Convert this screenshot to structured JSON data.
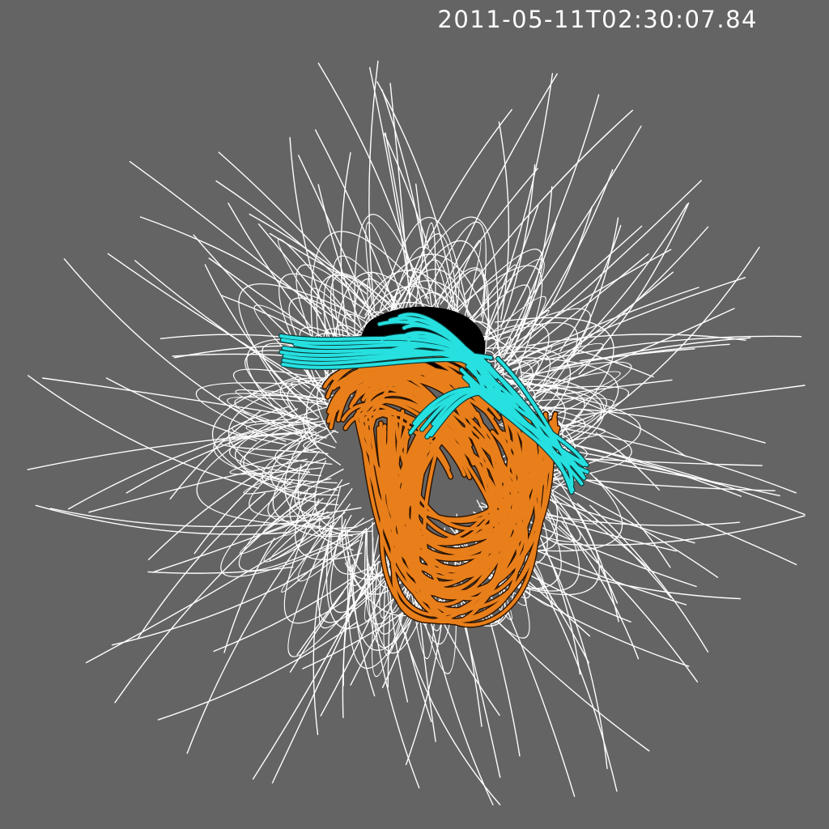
{
  "image": {
    "timestamp": "2011-05-11T02:30:07.84",
    "background_color": "#646464",
    "text_color": "#ffffff",
    "layers": [
      {
        "name": "open-field-lines",
        "color": "#ffffff"
      },
      {
        "name": "closed-field-loops",
        "color": "#ffffff"
      },
      {
        "name": "flux-rope",
        "color": "#e87f1b",
        "outline": "#2a1200"
      },
      {
        "name": "erupting-field-lines",
        "color": "#27e0e0",
        "outline": "#0a3a3a"
      },
      {
        "name": "solar-disk",
        "color": "#000000"
      }
    ]
  }
}
